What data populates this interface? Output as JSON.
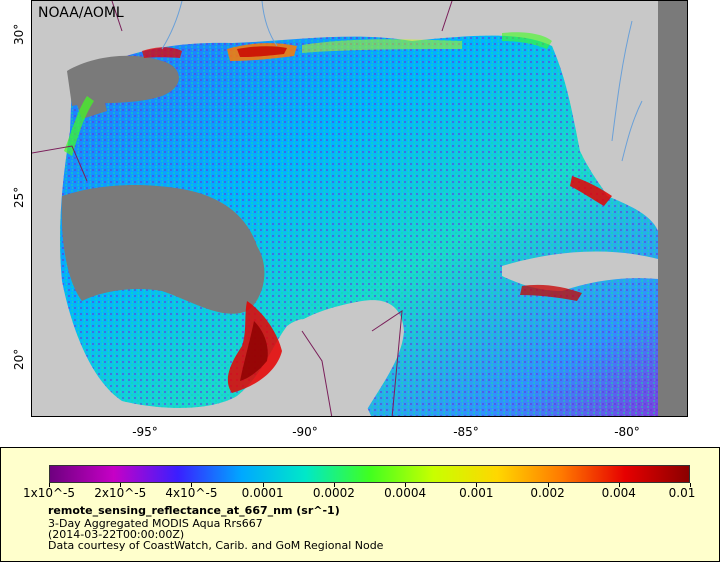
{
  "map": {
    "credit": "NOAA/AOML",
    "lat_ticks": [
      "30°",
      "25°",
      "20°"
    ],
    "lon_ticks": [
      "-95°",
      "-90°",
      "-85°",
      "-80°"
    ],
    "colors": {
      "land": "#c8c8c8",
      "no_data": "#7a7a7a",
      "borders": "#7a1f5a",
      "rivers": "#6aa0d8"
    }
  },
  "legend": {
    "colorbar_stops": [
      "#6e007f",
      "#c600c6",
      "#3a1fff",
      "#00a8ff",
      "#00e8c8",
      "#40ff20",
      "#c8ff00",
      "#ffd700",
      "#ff7a00",
      "#e60000",
      "#8b0000"
    ],
    "labels": [
      "1x10^-5",
      "2x10^-5",
      "4x10^-5",
      "0.0001",
      "0.0002",
      "0.0004",
      "0.001",
      "0.002",
      "0.004",
      "0.01"
    ],
    "variable": "remote_sensing_reflectance_at_667_nm (sr^-1)",
    "product": "3-Day Aggregated MODIS Aqua Rrs667",
    "date": "(2014-03-22T00:00:00Z)",
    "courtesy": "Data courtesy of CoastWatch, Carib. and GoM Regional Node"
  }
}
